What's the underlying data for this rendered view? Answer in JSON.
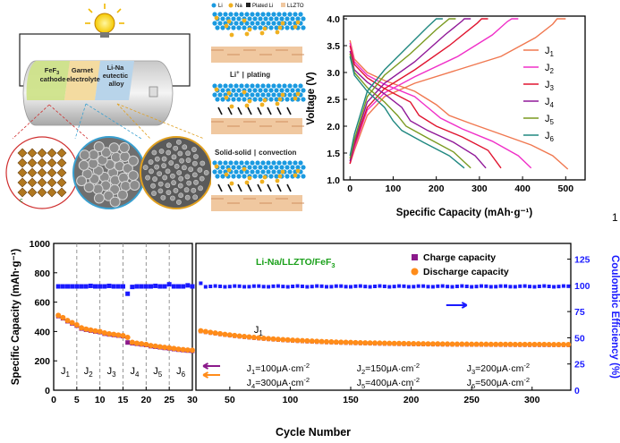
{
  "schematic": {
    "cathode_label": [
      "FeF",
      "3",
      "cathode"
    ],
    "electrolyte_label": [
      "Garnet",
      "electrolyte"
    ],
    "anode_label": [
      "Li-Na",
      "eutectic",
      "alloy"
    ],
    "axis_mark": "c"
  },
  "mechanism": {
    "legend": [
      "Li",
      "Na",
      "Plated Li",
      "LLZTO"
    ],
    "step1_label": [
      "Li",
      "+",
      "|",
      "plating"
    ],
    "step2_label": [
      "Solid-solid",
      "|",
      "convection"
    ]
  },
  "panel_number": "1",
  "colors": {
    "j1": "#f07850",
    "j2": "#f030c8",
    "j3": "#e01530",
    "j4": "#901898",
    "j5": "#7a9a20",
    "j6": "#208880",
    "charge": "#8b1a8b",
    "discharge": "#ff8c1a",
    "ce": "#1a1aff",
    "title_green": "#1aa01a",
    "li": "#1a9ae0",
    "na": "#f0b020",
    "ceramic": "#f0c8a0"
  },
  "chart_data": [
    {
      "type": "line",
      "title": "",
      "xlabel": "Specific Capacity (mAh·g⁻¹)",
      "ylabel": "Voltage (V)",
      "xlim": [
        -15,
        545
      ],
      "ylim": [
        1.0,
        4.05
      ],
      "xticks": [
        0,
        100,
        200,
        300,
        400,
        500
      ],
      "yticks": [
        1.0,
        1.5,
        2.0,
        2.5,
        3.0,
        3.5,
        4.0
      ],
      "legend_position": "right",
      "series": [
        {
          "name": "J",
          "sub": "1",
          "color_key": "j1",
          "discharge": [
            [
              0,
              3.6
            ],
            [
              10,
              3.25
            ],
            [
              40,
              3.0
            ],
            [
              80,
              2.85
            ],
            [
              150,
              2.65
            ],
            [
              200,
              2.4
            ],
            [
              230,
              2.2
            ],
            [
              280,
              2.05
            ],
            [
              350,
              1.85
            ],
            [
              420,
              1.65
            ],
            [
              470,
              1.45
            ],
            [
              505,
              1.2
            ]
          ],
          "charge": [
            [
              0,
              1.3
            ],
            [
              10,
              1.55
            ],
            [
              40,
              2.2
            ],
            [
              80,
              2.55
            ],
            [
              150,
              2.8
            ],
            [
              250,
              3.05
            ],
            [
              350,
              3.3
            ],
            [
              430,
              3.65
            ],
            [
              470,
              3.9
            ],
            [
              480,
              4.0
            ],
            [
              500,
              4.0
            ]
          ]
        },
        {
          "name": "J",
          "sub": "2",
          "color_key": "j2",
          "discharge": [
            [
              0,
              3.55
            ],
            [
              10,
              3.2
            ],
            [
              40,
              2.95
            ],
            [
              80,
              2.78
            ],
            [
              150,
              2.55
            ],
            [
              180,
              2.35
            ],
            [
              210,
              2.15
            ],
            [
              260,
              1.95
            ],
            [
              330,
              1.72
            ],
            [
              390,
              1.45
            ],
            [
              420,
              1.22
            ]
          ],
          "charge": [
            [
              0,
              1.3
            ],
            [
              10,
              1.6
            ],
            [
              40,
              2.3
            ],
            [
              80,
              2.62
            ],
            [
              150,
              2.92
            ],
            [
              250,
              3.3
            ],
            [
              330,
              3.7
            ],
            [
              365,
              3.95
            ],
            [
              375,
              4.0
            ],
            [
              390,
              4.0
            ]
          ]
        },
        {
          "name": "J",
          "sub": "3",
          "color_key": "j3",
          "discharge": [
            [
              0,
              3.5
            ],
            [
              10,
              3.15
            ],
            [
              40,
              2.9
            ],
            [
              80,
              2.7
            ],
            [
              140,
              2.45
            ],
            [
              160,
              2.2
            ],
            [
              200,
              2.0
            ],
            [
              260,
              1.8
            ],
            [
              320,
              1.55
            ],
            [
              350,
              1.22
            ]
          ],
          "charge": [
            [
              0,
              1.3
            ],
            [
              10,
              1.65
            ],
            [
              40,
              2.35
            ],
            [
              80,
              2.7
            ],
            [
              150,
              3.05
            ],
            [
              230,
              3.5
            ],
            [
              295,
              3.92
            ],
            [
              305,
              4.0
            ],
            [
              320,
              4.0
            ]
          ]
        },
        {
          "name": "J",
          "sub": "4",
          "color_key": "j4",
          "discharge": [
            [
              0,
              3.4
            ],
            [
              10,
              3.05
            ],
            [
              40,
              2.82
            ],
            [
              80,
              2.6
            ],
            [
              120,
              2.35
            ],
            [
              140,
              2.1
            ],
            [
              180,
              1.92
            ],
            [
              240,
              1.7
            ],
            [
              290,
              1.45
            ],
            [
              315,
              1.22
            ]
          ],
          "charge": [
            [
              0,
              1.35
            ],
            [
              10,
              1.7
            ],
            [
              40,
              2.45
            ],
            [
              80,
              2.8
            ],
            [
              150,
              3.2
            ],
            [
              220,
              3.7
            ],
            [
              260,
              3.96
            ],
            [
              265,
              4.0
            ],
            [
              280,
              4.0
            ]
          ]
        },
        {
          "name": "J",
          "sub": "5",
          "color_key": "j5",
          "discharge": [
            [
              0,
              3.35
            ],
            [
              10,
              3.0
            ],
            [
              40,
              2.72
            ],
            [
              80,
              2.45
            ],
            [
              110,
              2.2
            ],
            [
              130,
              2.0
            ],
            [
              180,
              1.78
            ],
            [
              240,
              1.52
            ],
            [
              280,
              1.22
            ]
          ],
          "charge": [
            [
              0,
              1.4
            ],
            [
              10,
              1.75
            ],
            [
              40,
              2.55
            ],
            [
              80,
              2.95
            ],
            [
              140,
              3.35
            ],
            [
              200,
              3.8
            ],
            [
              230,
              4.0
            ],
            [
              245,
              4.0
            ]
          ]
        },
        {
          "name": "J",
          "sub": "6",
          "color_key": "j6",
          "discharge": [
            [
              0,
              3.3
            ],
            [
              10,
              2.95
            ],
            [
              40,
              2.65
            ],
            [
              80,
              2.35
            ],
            [
              100,
              2.1
            ],
            [
              120,
              1.92
            ],
            [
              170,
              1.7
            ],
            [
              230,
              1.45
            ],
            [
              265,
              1.22
            ]
          ],
          "charge": [
            [
              0,
              1.45
            ],
            [
              10,
              1.85
            ],
            [
              40,
              2.65
            ],
            [
              80,
              3.05
            ],
            [
              130,
              3.45
            ],
            [
              180,
              3.85
            ],
            [
              200,
              4.0
            ],
            [
              215,
              4.0
            ]
          ]
        }
      ]
    },
    {
      "type": "scatter",
      "title": "Li-Na/LLZTO/FeF",
      "title_sub": "3",
      "xlabel": "Cycle Number",
      "ylabel": "Specific Capacity (mAh·g⁻¹)",
      "y2label": "Coulombic Efficiency (%)",
      "ylim": [
        0,
        1000
      ],
      "y2lim": [
        0,
        140
      ],
      "yticks": [
        0,
        200,
        400,
        600,
        800,
        1000
      ],
      "y2ticks": [
        0,
        25,
        50,
        75,
        100,
        125
      ],
      "rate_panel": {
        "xlim": [
          0,
          30
        ],
        "xticks": [
          0,
          5,
          10,
          15,
          20,
          25,
          30
        ],
        "boundaries": [
          5,
          10,
          15,
          20,
          25
        ],
        "region_labels": [
          {
            "t": "J",
            "s": "1",
            "x": 2.5
          },
          {
            "t": "J",
            "s": "2",
            "x": 7.5
          },
          {
            "t": "J",
            "s": "3",
            "x": 12.5
          },
          {
            "t": "J",
            "s": "4",
            "x": 17.5
          },
          {
            "t": "J",
            "s": "5",
            "x": 22.5
          },
          {
            "t": "J",
            "s": "6",
            "x": 27.5
          }
        ],
        "charge": [
          [
            1,
            505
          ],
          [
            2,
            490
          ],
          [
            3,
            470
          ],
          [
            4,
            455
          ],
          [
            5,
            440
          ],
          [
            6,
            420
          ],
          [
            7,
            412
          ],
          [
            8,
            406
          ],
          [
            9,
            400
          ],
          [
            10,
            396
          ],
          [
            11,
            385
          ],
          [
            12,
            380
          ],
          [
            13,
            376
          ],
          [
            14,
            372
          ],
          [
            15,
            368
          ],
          [
            16,
            325
          ],
          [
            17,
            320
          ],
          [
            18,
            316
          ],
          [
            19,
            312
          ],
          [
            20,
            308
          ],
          [
            21,
            300
          ],
          [
            22,
            296
          ],
          [
            23,
            292
          ],
          [
            24,
            288
          ],
          [
            25,
            285
          ],
          [
            26,
            280
          ],
          [
            27,
            276
          ],
          [
            28,
            273
          ],
          [
            29,
            270
          ],
          [
            30,
            268
          ]
        ],
        "discharge": [
          [
            1,
            510
          ],
          [
            2,
            495
          ],
          [
            3,
            475
          ],
          [
            4,
            460
          ],
          [
            5,
            445
          ],
          [
            6,
            425
          ],
          [
            7,
            416
          ],
          [
            8,
            410
          ],
          [
            9,
            404
          ],
          [
            10,
            400
          ],
          [
            11,
            390
          ],
          [
            12,
            384
          ],
          [
            13,
            380
          ],
          [
            14,
            376
          ],
          [
            15,
            372
          ],
          [
            16,
            360
          ],
          [
            17,
            326
          ],
          [
            18,
            320
          ],
          [
            19,
            316
          ],
          [
            20,
            312
          ],
          [
            21,
            304
          ],
          [
            22,
            300
          ],
          [
            23,
            296
          ],
          [
            24,
            292
          ],
          [
            25,
            289
          ],
          [
            26,
            284
          ],
          [
            27,
            280
          ],
          [
            28,
            277
          ],
          [
            29,
            274
          ],
          [
            30,
            272
          ]
        ],
        "ce": [
          [
            1,
            99
          ],
          [
            2,
            99
          ],
          [
            3,
            99
          ],
          [
            4,
            99
          ],
          [
            5,
            99
          ],
          [
            6,
            99
          ],
          [
            7,
            99
          ],
          [
            8,
            99.5
          ],
          [
            9,
            99
          ],
          [
            10,
            99
          ],
          [
            11,
            99
          ],
          [
            12,
            99.5
          ],
          [
            13,
            99
          ],
          [
            14,
            99
          ],
          [
            15,
            99
          ],
          [
            16,
            92
          ],
          [
            17,
            98.5
          ],
          [
            18,
            99
          ],
          [
            19,
            99
          ],
          [
            20,
            99
          ],
          [
            21,
            99
          ],
          [
            22,
            99.5
          ],
          [
            23,
            99
          ],
          [
            24,
            99
          ],
          [
            25,
            101
          ],
          [
            26,
            99
          ],
          [
            27,
            99
          ],
          [
            28,
            99
          ],
          [
            29,
            100
          ],
          [
            30,
            99
          ]
        ]
      },
      "cycle_panel": {
        "xlim": [
          22,
          332
        ],
        "xticks": [
          50,
          100,
          150,
          200,
          250,
          300
        ],
        "region_label": {
          "t": "J",
          "s": "1"
        },
        "charge_start": 400,
        "charge_end": 305,
        "discharge_start": 405,
        "discharge_end": 310,
        "ce_level": 99,
        "ce_first": 102,
        "legend": [
          "Charge capacity",
          "Discharge capacity"
        ],
        "current_densities": [
          {
            "j": "J",
            "s": "1",
            "v": "=100μA·cm",
            "e": "-2"
          },
          {
            "j": "J",
            "s": "2",
            "v": "=150μA·cm",
            "e": "-2"
          },
          {
            "j": "J",
            "s": "3",
            "v": "=200μA·cm",
            "e": "-2"
          },
          {
            "j": "J",
            "s": "4",
            "v": "=300μA·cm",
            "e": "-2"
          },
          {
            "j": "J",
            "s": "5",
            "v": "=400μA·cm",
            "e": "-2"
          },
          {
            "j": "J",
            "s": "6",
            "v": "=500μA·cm",
            "e": "-2"
          }
        ]
      }
    }
  ]
}
